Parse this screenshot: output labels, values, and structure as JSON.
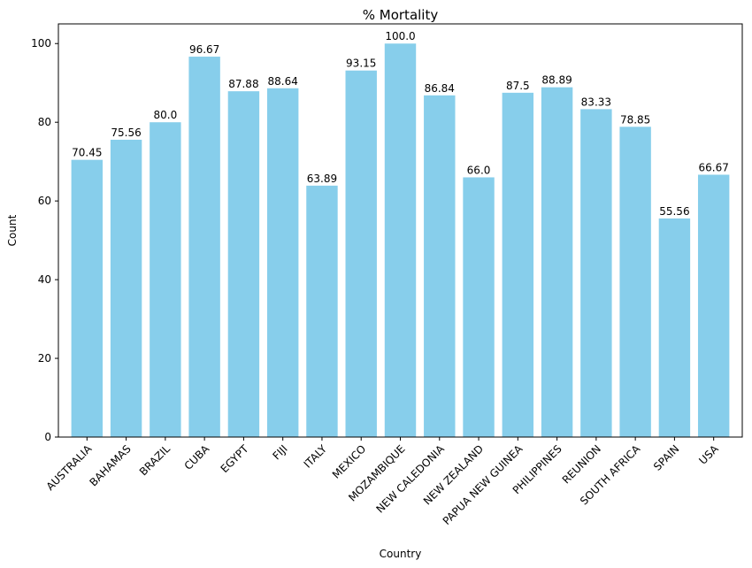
{
  "chart_data": {
    "type": "bar",
    "title": "% Mortality",
    "xlabel": "Country",
    "ylabel": "Count",
    "ylim": [
      0,
      105
    ],
    "yticks": [
      0,
      20,
      40,
      60,
      80,
      100
    ],
    "grid": false,
    "bar_color": "#87ceeb",
    "categories": [
      "AUSTRALIA",
      "BAHAMAS",
      "BRAZIL",
      "CUBA",
      "EGYPT",
      "FIJI",
      "ITALY",
      "MEXICO",
      "MOZAMBIQUE",
      "NEW CALEDONIA",
      "NEW ZEALAND",
      "PAPUA NEW GUINEA",
      "PHILIPPINES",
      "REUNION",
      "SOUTH AFRICA",
      "SPAIN",
      "USA"
    ],
    "values": [
      70.45,
      75.56,
      80.0,
      96.67,
      87.88,
      88.64,
      63.89,
      93.15,
      100.0,
      86.84,
      66.0,
      87.5,
      88.89,
      83.33,
      78.85,
      55.56,
      66.67
    ],
    "value_labels": [
      "70.45",
      "75.56",
      "80.0",
      "96.67",
      "87.88",
      "88.64",
      "63.89",
      "93.15",
      "100.0",
      "86.84",
      "66.0",
      "87.5",
      "88.89",
      "83.33",
      "78.85",
      "55.56",
      "66.67"
    ]
  }
}
